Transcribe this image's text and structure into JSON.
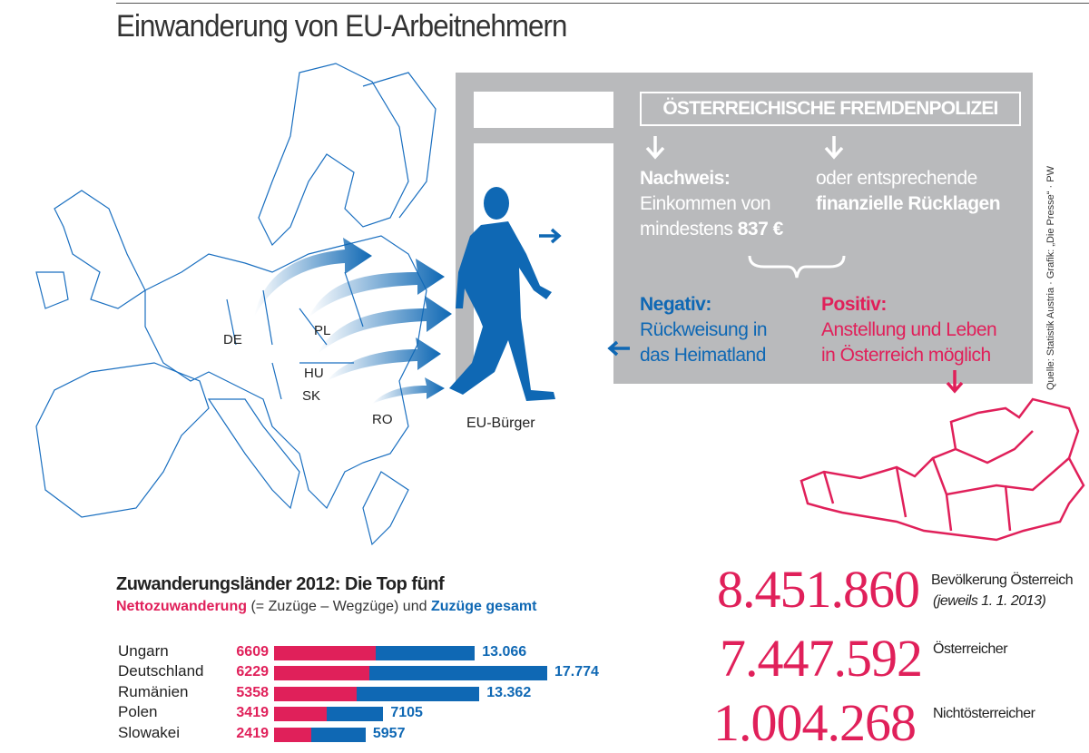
{
  "title": "Einwanderung von EU-Arbeitnehmern",
  "map": {
    "country_codes": [
      "DE",
      "PL",
      "HU",
      "SK",
      "RO"
    ],
    "person_label": "EU-Bürger"
  },
  "flow": {
    "authority": "ÖSTERREICHISCHE FREMDENPOLIZEI",
    "option1": {
      "heading": "Nachweis:",
      "line1": "Einkommen von",
      "line2_prefix": "mindestens",
      "amount": "837 €"
    },
    "option2": {
      "line1": "oder entsprechende",
      "line2": "finanzielle Rücklagen"
    },
    "negative": {
      "heading": "Negativ:",
      "line1": "Rückweisung in",
      "line2": "das Heimatland"
    },
    "positive": {
      "heading": "Positiv:",
      "line1": "Anstellung und Leben",
      "line2": "in Österreich möglich"
    }
  },
  "source": "Quelle: Statistik Austria · Grafik: „Die Presse“ · PW",
  "colors": {
    "pink": "#e0205a",
    "blue": "#0f68b4",
    "gray": "#b9babc"
  },
  "chart_data": {
    "type": "bar",
    "title": "Zuwanderungsländer 2012: Die Top fünf",
    "subtitle": {
      "net": "Nettozuwanderung",
      "middle": "(= Zuzüge – Wegzüge) und",
      "total": "Zuzüge gesamt"
    },
    "categories": [
      "Ungarn",
      "Deutschland",
      "Rumänien",
      "Polen",
      "Slowakei"
    ],
    "series": [
      {
        "name": "Nettozuwanderung",
        "values": [
          6609,
          6229,
          5358,
          3419,
          2419
        ],
        "labels": [
          "6609",
          "6229",
          "5358",
          "3419",
          "2419"
        ]
      },
      {
        "name": "Zuzüge gesamt",
        "values": [
          13066,
          17774,
          13362,
          7105,
          5957
        ],
        "labels": [
          "13.066",
          "17.774",
          "13.362",
          "7105",
          "5957"
        ]
      }
    ],
    "orientation": "horizontal",
    "grid": false
  },
  "population": [
    {
      "value": "8.451.860",
      "label": "Bevölkerung Österreich",
      "note": "(jeweils 1. 1. 2013)"
    },
    {
      "value": "7.447.592",
      "label": "Österreicher"
    },
    {
      "value": "1.004.268",
      "label": "Nichtösterreicher"
    }
  ]
}
